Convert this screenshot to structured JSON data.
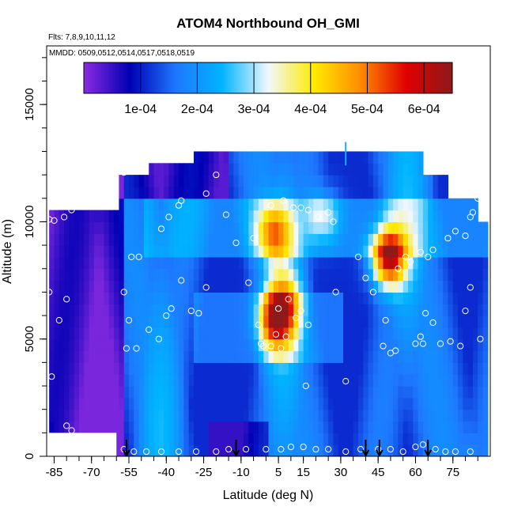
{
  "chart_data": {
    "type": "heatmap",
    "title": "ATOM4 Northbound OH_GMI",
    "flights_note": "Flts: 7,8,9,10,11,12",
    "dates_note": "MMDD: 0509,0512,0514,0517,0518,0519",
    "xlabel": "Latitude (deg N)",
    "ylabel": "Altitude (m)",
    "xlim": [
      -88,
      90
    ],
    "ylim": [
      0,
      17500
    ],
    "x_ticks": [
      -85,
      -70,
      -55,
      -40,
      -25,
      -10,
      5,
      15,
      30,
      45,
      60,
      75
    ],
    "y_ticks": [
      0,
      5000,
      10000,
      15000
    ],
    "y_tick_labels": [
      "0",
      "5000",
      "10000",
      "15000"
    ],
    "colorbar": {
      "range": [
        0,
        0.00065
      ],
      "tick_values": [
        0.0001,
        0.0002,
        0.0003,
        0.0004,
        0.0005,
        0.0006
      ],
      "tick_labels": [
        "1e-04",
        "2e-04",
        "3e-04",
        "4e-04",
        "5e-04",
        "6e-04"
      ],
      "colors": [
        "#8a2be2",
        "#0000b4",
        "#1e78ff",
        "#00b4ff",
        "#f0f8ff",
        "#ffea00",
        "#ff8c00",
        "#e00000",
        "#8b1a1a"
      ]
    },
    "arrow_latitudes": [
      -56,
      -12,
      40,
      45.5,
      65
    ],
    "cyan_mark": {
      "lat": 32,
      "alt": 12900
    },
    "hotspots": [
      {
        "lat": 3,
        "alt": 5500,
        "value": 0.00052
      },
      {
        "lat": 2,
        "alt": 9300,
        "value": 0.00044
      },
      {
        "lat": 48,
        "alt": 8200,
        "value": 0.00064
      },
      {
        "lat": 6,
        "alt": 6500,
        "value": 0.0004
      },
      {
        "lat": 22,
        "alt": 10000,
        "value": 0.00034
      }
    ],
    "sample_points": [
      [
        -87,
        10100
      ],
      [
        -85,
        10050
      ],
      [
        -81,
        10200
      ],
      [
        -78,
        10500
      ],
      [
        -74,
        10700
      ],
      [
        -70,
        11100
      ],
      [
        -67,
        11300
      ],
      [
        -61,
        11300
      ],
      [
        -87,
        7000
      ],
      [
        -80,
        6700
      ],
      [
        -83,
        5800
      ],
      [
        -57,
        7000
      ],
      [
        -55,
        5800
      ],
      [
        -54,
        8500
      ],
      [
        -51,
        8500
      ],
      [
        -56,
        4600
      ],
      [
        -52,
        4600
      ],
      [
        -47,
        5400
      ],
      [
        -43,
        5000
      ],
      [
        -40,
        6000
      ],
      [
        -38,
        6300
      ],
      [
        -34,
        7500
      ],
      [
        -30,
        6200
      ],
      [
        -27,
        6100
      ],
      [
        -24,
        7200
      ],
      [
        -42,
        9700
      ],
      [
        -39,
        10200
      ],
      [
        -35,
        10700
      ],
      [
        -34,
        10900
      ],
      [
        -24,
        11200
      ],
      [
        -16,
        10300
      ],
      [
        -12,
        9100
      ],
      [
        -5,
        9300
      ],
      [
        -7,
        7400
      ],
      [
        -3,
        5600
      ],
      [
        -2,
        4800
      ],
      [
        -1,
        4700
      ],
      [
        2,
        4700
      ],
      [
        4,
        5200
      ],
      [
        5,
        6300
      ],
      [
        6,
        4600
      ],
      [
        8,
        5100
      ],
      [
        9,
        6700
      ],
      [
        2,
        10700
      ],
      [
        7,
        10900
      ],
      [
        11,
        10600
      ],
      [
        14,
        10600
      ],
      [
        17,
        10500
      ],
      [
        21,
        10200
      ],
      [
        25,
        10400
      ],
      [
        27,
        10000
      ],
      [
        12,
        5900
      ],
      [
        14,
        6200
      ],
      [
        17,
        5600
      ],
      [
        16,
        3000
      ],
      [
        28,
        7000
      ],
      [
        32,
        3200
      ],
      [
        37,
        8500
      ],
      [
        40,
        7600
      ],
      [
        43,
        7000
      ],
      [
        47,
        4700
      ],
      [
        48,
        5800
      ],
      [
        50,
        4400
      ],
      [
        52,
        4500
      ],
      [
        53,
        8000
      ],
      [
        56,
        8500
      ],
      [
        58,
        8300
      ],
      [
        60,
        4800
      ],
      [
        62,
        5100
      ],
      [
        63,
        4800
      ],
      [
        64,
        6100
      ],
      [
        67,
        5700
      ],
      [
        70,
        4800
      ],
      [
        74,
        4900
      ],
      [
        78,
        4700
      ],
      [
        80,
        6200
      ],
      [
        82,
        7200
      ],
      [
        86,
        5000
      ],
      [
        62,
        8700
      ],
      [
        65,
        8500
      ],
      [
        67,
        8800
      ],
      [
        73,
        9300
      ],
      [
        76,
        9600
      ],
      [
        80,
        9400
      ],
      [
        82,
        10200
      ],
      [
        83,
        10400
      ],
      [
        85,
        11000
      ],
      [
        -86,
        3400
      ],
      [
        -80,
        1300
      ],
      [
        -78,
        1100
      ],
      [
        -62,
        300
      ],
      [
        -57,
        300
      ],
      [
        -53,
        200
      ],
      [
        -48,
        200
      ],
      [
        -42,
        200
      ],
      [
        -35,
        200
      ],
      [
        -28,
        200
      ],
      [
        -20,
        200
      ],
      [
        -15,
        300
      ],
      [
        -8,
        300
      ],
      [
        0,
        300
      ],
      [
        6,
        300
      ],
      [
        10,
        400
      ],
      [
        15,
        400
      ],
      [
        20,
        300
      ],
      [
        25,
        300
      ],
      [
        32,
        200
      ],
      [
        38,
        300
      ],
      [
        45,
        300
      ],
      [
        50,
        300
      ],
      [
        55,
        200
      ],
      [
        60,
        400
      ],
      [
        63,
        500
      ],
      [
        68,
        300
      ],
      [
        72,
        200
      ],
      [
        76,
        200
      ],
      [
        82,
        200
      ],
      [
        -20,
        12000
      ],
      [
        -57,
        12100
      ]
    ]
  }
}
